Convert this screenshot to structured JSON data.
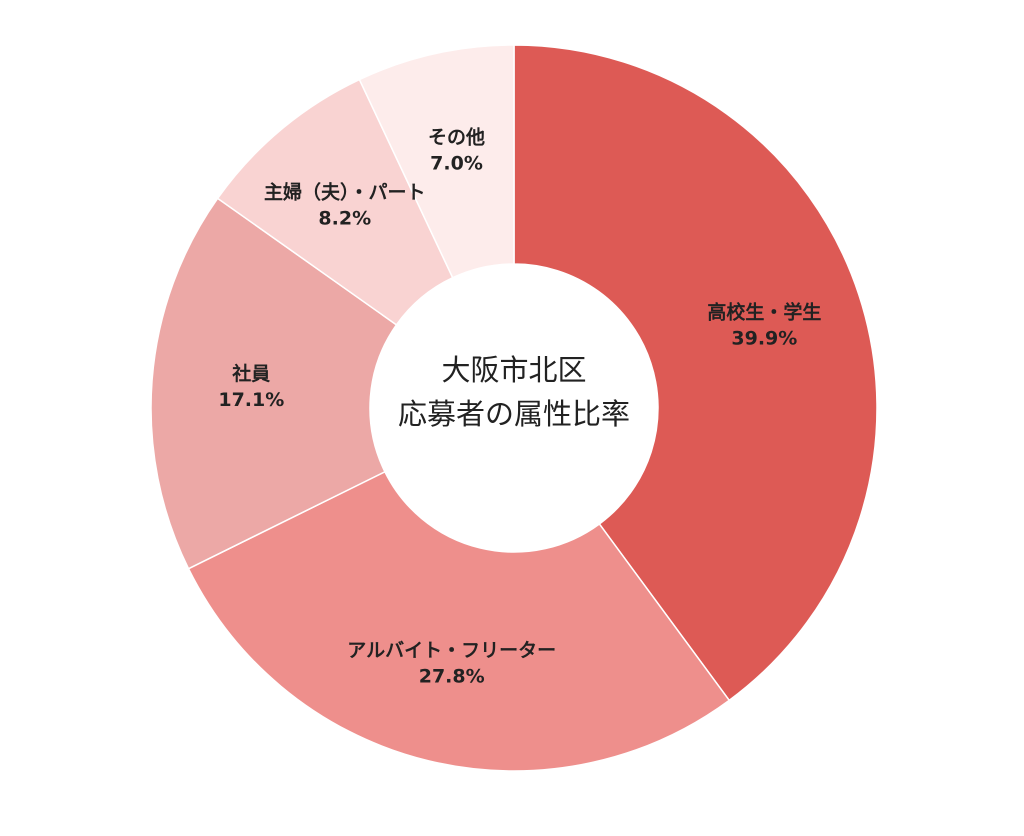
{
  "chart_data": {
    "type": "donut",
    "title": [
      "大阪市北区",
      "応募者の属性比率"
    ],
    "categories": [
      "高校生・学生",
      "アルバイト・フリーター",
      "社員",
      "主婦（夫）・パート",
      "その他"
    ],
    "values": [
      39.9,
      27.8,
      17.1,
      8.2,
      7.0
    ],
    "value_labels": [
      "39.9%",
      "27.8%",
      "17.1%",
      "8.2%",
      "7.0%"
    ],
    "colors": [
      "#dd5a55",
      "#ee8f8c",
      "#eca8a6",
      "#f9d3d2",
      "#fdeceb"
    ]
  }
}
